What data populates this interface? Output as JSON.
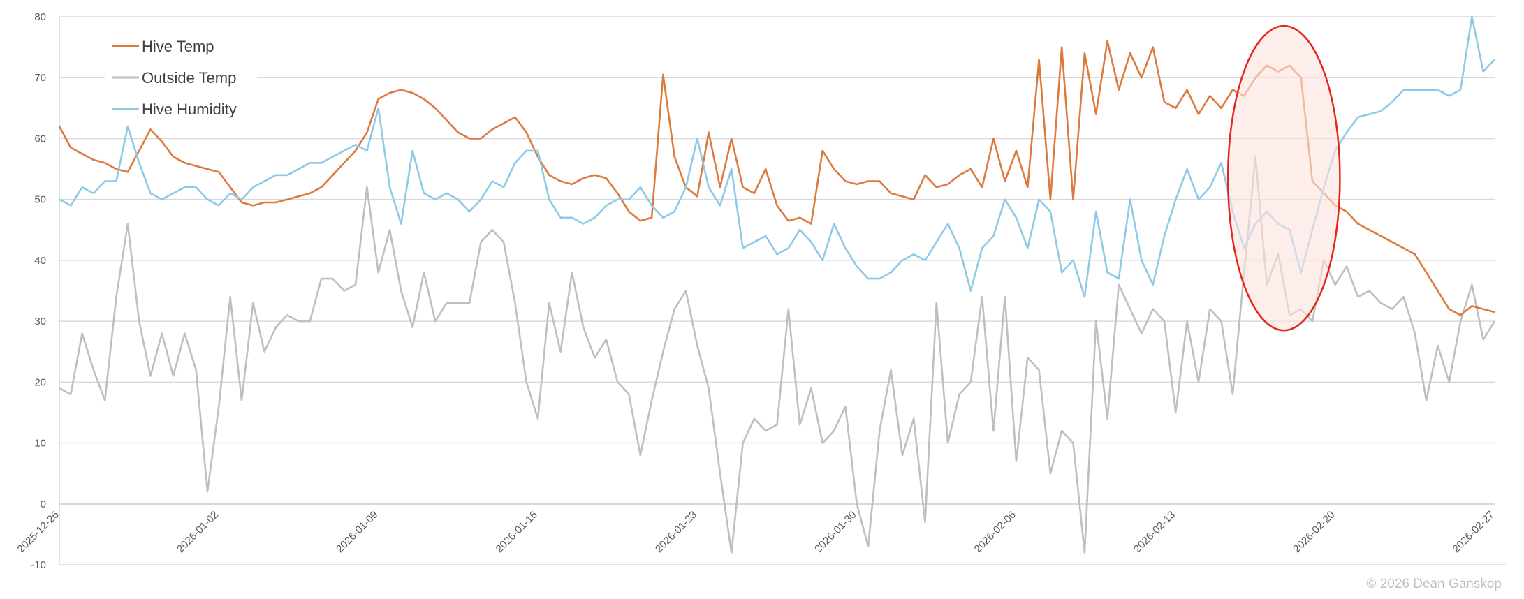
{
  "copyright": "© 2026 Dean Ganskop",
  "chart_data": {
    "type": "line",
    "title": "",
    "xlabel": "",
    "ylabel": "",
    "ylim": [
      -10,
      80
    ],
    "y_ticks": [
      -10,
      0,
      10,
      20,
      30,
      40,
      50,
      60,
      70,
      80
    ],
    "x_range": [
      "2025-12-26T00:00",
      "2026-02-27T00:00"
    ],
    "x_ticks": [
      "2025-12-26",
      "2026-01-02",
      "2026-01-09",
      "2026-01-16",
      "2026-01-23",
      "2026-01-30",
      "2026-02-06",
      "2026-02-13",
      "2026-02-20",
      "2026-02-27"
    ],
    "grid": "horizontal",
    "legend_position": "top-left",
    "x": [
      "2025-12-26T00:00",
      "2025-12-26T12:00",
      "2025-12-27T00:00",
      "2025-12-27T12:00",
      "2025-12-28T00:00",
      "2025-12-28T12:00",
      "2025-12-29T00:00",
      "2025-12-29T12:00",
      "2025-12-30T00:00",
      "2025-12-30T12:00",
      "2025-12-31T00:00",
      "2025-12-31T12:00",
      "2026-01-01T00:00",
      "2026-01-01T12:00",
      "2026-01-02T00:00",
      "2026-01-02T12:00",
      "2026-01-03T00:00",
      "2026-01-03T12:00",
      "2026-01-04T00:00",
      "2026-01-04T12:00",
      "2026-01-05T00:00",
      "2026-01-05T12:00",
      "2026-01-06T00:00",
      "2026-01-06T12:00",
      "2026-01-07T00:00",
      "2026-01-07T12:00",
      "2026-01-08T00:00",
      "2026-01-08T12:00",
      "2026-01-09T00:00",
      "2026-01-09T12:00",
      "2026-01-10T00:00",
      "2026-01-10T12:00",
      "2026-01-11T00:00",
      "2026-01-11T12:00",
      "2026-01-12T00:00",
      "2026-01-12T12:00",
      "2026-01-13T00:00",
      "2026-01-13T12:00",
      "2026-01-14T00:00",
      "2026-01-14T12:00",
      "2026-01-15T00:00",
      "2026-01-15T12:00",
      "2026-01-16T00:00",
      "2026-01-16T12:00",
      "2026-01-17T00:00",
      "2026-01-17T12:00",
      "2026-01-18T00:00",
      "2026-01-18T12:00",
      "2026-01-19T00:00",
      "2026-01-19T12:00",
      "2026-01-20T00:00",
      "2026-01-20T12:00",
      "2026-01-21T00:00",
      "2026-01-21T12:00",
      "2026-01-22T00:00",
      "2026-01-22T12:00",
      "2026-01-23T00:00",
      "2026-01-23T12:00",
      "2026-01-24T00:00",
      "2026-01-24T12:00",
      "2026-01-25T00:00",
      "2026-01-25T12:00",
      "2026-01-26T00:00",
      "2026-01-26T12:00",
      "2026-01-27T00:00",
      "2026-01-27T12:00",
      "2026-01-28T00:00",
      "2026-01-28T12:00",
      "2026-01-29T00:00",
      "2026-01-29T12:00",
      "2026-01-30T00:00",
      "2026-01-30T12:00",
      "2026-01-31T00:00",
      "2026-01-31T12:00",
      "2026-02-01T00:00",
      "2026-02-01T12:00",
      "2026-02-02T00:00",
      "2026-02-02T12:00",
      "2026-02-03T00:00",
      "2026-02-03T12:00",
      "2026-02-04T00:00",
      "2026-02-04T12:00",
      "2026-02-05T00:00",
      "2026-02-05T12:00",
      "2026-02-06T00:00",
      "2026-02-06T12:00",
      "2026-02-07T00:00",
      "2026-02-07T12:00",
      "2026-02-08T00:00",
      "2026-02-08T12:00",
      "2026-02-09T00:00",
      "2026-02-09T12:00",
      "2026-02-10T00:00",
      "2026-02-10T12:00",
      "2026-02-11T00:00",
      "2026-02-11T12:00",
      "2026-02-12T00:00",
      "2026-02-12T12:00",
      "2026-02-13T00:00",
      "2026-02-13T12:00",
      "2026-02-14T00:00",
      "2026-02-14T12:00",
      "2026-02-15T00:00",
      "2026-02-15T12:00",
      "2026-02-16T00:00",
      "2026-02-16T12:00",
      "2026-02-17T00:00",
      "2026-02-17T12:00",
      "2026-02-18T00:00",
      "2026-02-18T12:00",
      "2026-02-19T00:00",
      "2026-02-19T12:00",
      "2026-02-20T00:00",
      "2026-02-20T12:00",
      "2026-02-21T00:00",
      "2026-02-21T12:00",
      "2026-02-22T00:00",
      "2026-02-22T12:00",
      "2026-02-23T00:00",
      "2026-02-23T12:00",
      "2026-02-24T00:00",
      "2026-02-24T12:00",
      "2026-02-25T00:00",
      "2026-02-25T12:00",
      "2026-02-26T00:00",
      "2026-02-26T12:00",
      "2026-02-27T00:00"
    ],
    "series": [
      {
        "name": "Outside Temp",
        "color": "#bfbfbf",
        "values": [
          19,
          18,
          28,
          22,
          17,
          34,
          46,
          30,
          21,
          28,
          21,
          28,
          22,
          2,
          16,
          34,
          17,
          33,
          25,
          29,
          31,
          30,
          30,
          37,
          37,
          35,
          36,
          52,
          38,
          45,
          35,
          29,
          38,
          30,
          33,
          33,
          33,
          43,
          45,
          43,
          33,
          20,
          14,
          33,
          25,
          38,
          29,
          24,
          27,
          20,
          18,
          8,
          17,
          25,
          32,
          35,
          26,
          19,
          5,
          -8,
          10,
          14,
          12,
          13,
          32,
          13,
          19,
          10,
          12,
          16,
          0,
          -7,
          12,
          22,
          8,
          14,
          -3,
          33,
          10,
          18,
          20,
          34,
          12,
          34,
          7,
          24,
          22,
          5,
          12,
          10,
          -8,
          30,
          14,
          36,
          32,
          28,
          32,
          30,
          15,
          30,
          20,
          32,
          30,
          18,
          38,
          57,
          36,
          41,
          31,
          32,
          30,
          40,
          36,
          39,
          34,
          35,
          33,
          32,
          34,
          28,
          17,
          26,
          20,
          30,
          36,
          27,
          30
        ]
      },
      {
        "name": "Hive Temp",
        "color": "#dd7a3e",
        "values": [
          62,
          58.5,
          57.5,
          56.5,
          56,
          55,
          54.5,
          58,
          61.5,
          59.5,
          57,
          56,
          55.5,
          55,
          54.5,
          52,
          49.5,
          49,
          49.5,
          49.5,
          50,
          50.5,
          51,
          52,
          54,
          56,
          58,
          61,
          66.5,
          67.5,
          68,
          67.5,
          66.5,
          65,
          63,
          61,
          60,
          60,
          61.5,
          62.5,
          63.5,
          61,
          57,
          54,
          53,
          52.5,
          53.5,
          54,
          53.5,
          51,
          48,
          46.5,
          47,
          70.5,
          57,
          52,
          50.5,
          61,
          52,
          60,
          52,
          51,
          55,
          49,
          46.5,
          47,
          46,
          58,
          55,
          53,
          52.5,
          53,
          53,
          51,
          50.5,
          50,
          54,
          52,
          52.5,
          54,
          55,
          52,
          60,
          53,
          58,
          52,
          73,
          50,
          75,
          50,
          74,
          64,
          76,
          68,
          74,
          70,
          75,
          66,
          65,
          68,
          64,
          67,
          65,
          68,
          67,
          70,
          72,
          71,
          72,
          70,
          53,
          51,
          49,
          48,
          46,
          45,
          44,
          43,
          42,
          41,
          38,
          35,
          32,
          31,
          32.5,
          32,
          31.5
        ]
      },
      {
        "name": "Hive Humidity",
        "color": "#8ecae8",
        "values": [
          50,
          49,
          52,
          51,
          53,
          53,
          62,
          56,
          51,
          50,
          51,
          52,
          52,
          50,
          49,
          51,
          50,
          52,
          53,
          54,
          54,
          55,
          56,
          56,
          57,
          58,
          59,
          58,
          65,
          52,
          46,
          58,
          51,
          50,
          51,
          50,
          48,
          50,
          53,
          52,
          56,
          58,
          58,
          50,
          47,
          47,
          46,
          47,
          49,
          50,
          50,
          52,
          49,
          47,
          48,
          52,
          60,
          52,
          49,
          55,
          42,
          43,
          44,
          41,
          42,
          45,
          43,
          40,
          46,
          42,
          39,
          37,
          37,
          38,
          40,
          41,
          40,
          43,
          46,
          42,
          35,
          42,
          44,
          50,
          47,
          42,
          50,
          48,
          38,
          40,
          34,
          48,
          38,
          37,
          50,
          40,
          36,
          44,
          50,
          55,
          50,
          52,
          56,
          48,
          42,
          46,
          48,
          46,
          45,
          38,
          45,
          52,
          58,
          61,
          63.5,
          64,
          64.5,
          66,
          68,
          68,
          68,
          68,
          67,
          68,
          80,
          71,
          73
        ]
      }
    ],
    "annotations": [
      {
        "type": "ellipse",
        "x_range": [
          "2026-02-15T07:00",
          "2026-02-20T05:00"
        ],
        "y_range": [
          28.5,
          78.5
        ],
        "stroke": "#e3261c",
        "fill": "#fbe3e0"
      }
    ]
  }
}
